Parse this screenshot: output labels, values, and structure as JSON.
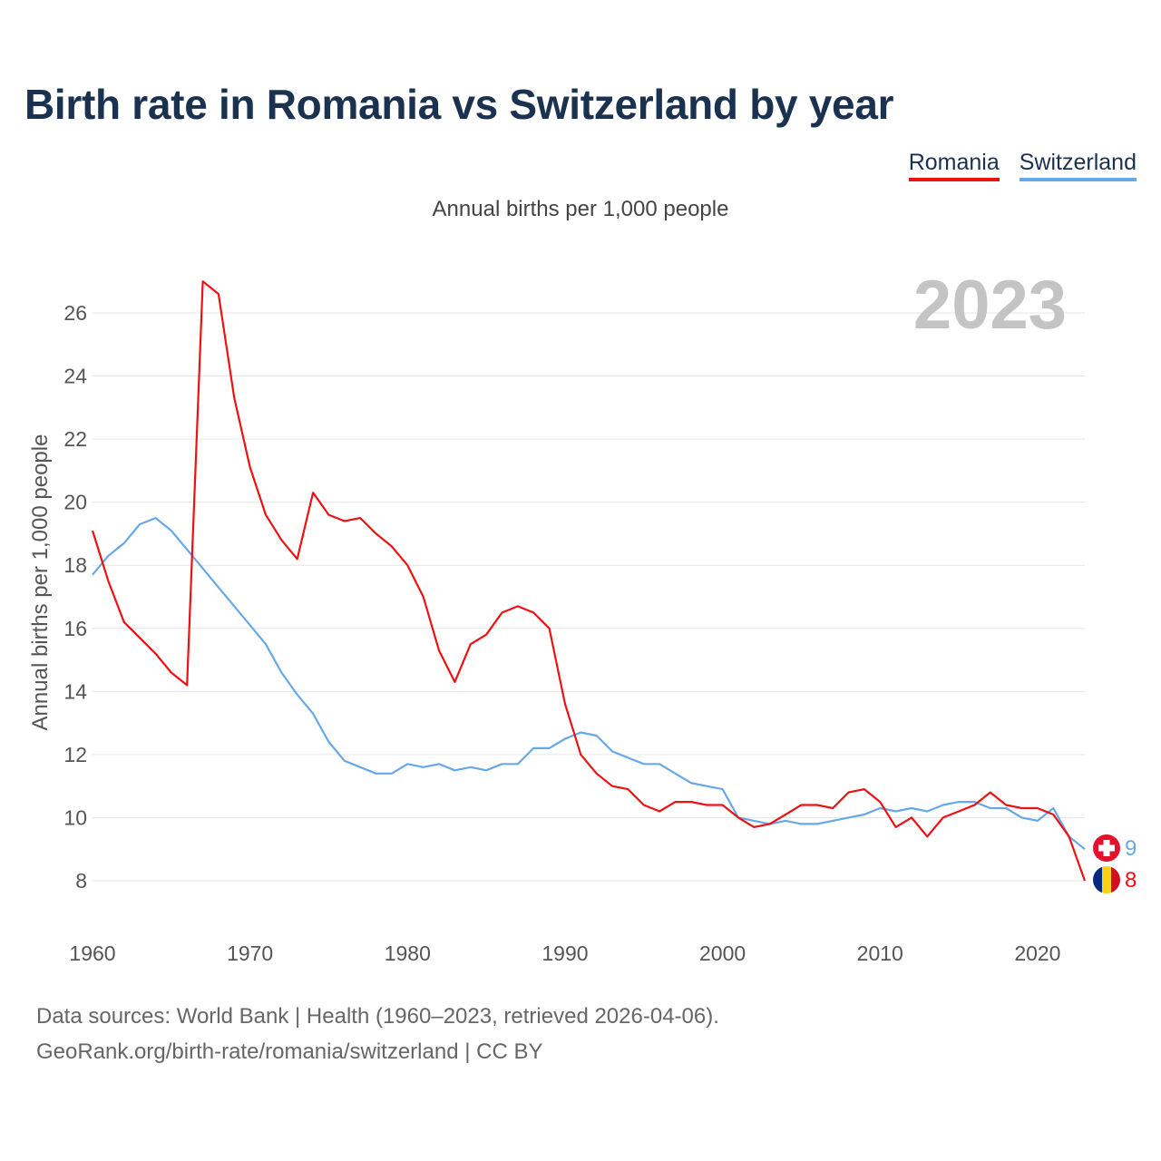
{
  "colors": {
    "romania": "#ee1111",
    "switzerland": "#66a8e8",
    "title": "#1a3150"
  },
  "chart_data": {
    "type": "line",
    "title": "Birth rate in Romania vs Switzerland by year",
    "subtitle": "Annual births per 1,000 people",
    "ylabel": "Annual births per 1,000 people",
    "xlabel": "",
    "year_label": "2023",
    "xlim": [
      1960,
      2023
    ],
    "ylim": [
      7,
      27.5
    ],
    "x_ticks": [
      "1960",
      "1970",
      "1980",
      "1990",
      "2000",
      "2010",
      "2020"
    ],
    "y_ticks": [
      "8",
      "10",
      "12",
      "14",
      "16",
      "18",
      "20",
      "22",
      "24",
      "26"
    ],
    "x": [
      1960,
      1961,
      1962,
      1963,
      1964,
      1965,
      1966,
      1967,
      1968,
      1969,
      1970,
      1971,
      1972,
      1973,
      1974,
      1975,
      1976,
      1977,
      1978,
      1979,
      1980,
      1981,
      1982,
      1983,
      1984,
      1985,
      1986,
      1987,
      1988,
      1989,
      1990,
      1991,
      1992,
      1993,
      1994,
      1995,
      1996,
      1997,
      1998,
      1999,
      2000,
      2001,
      2002,
      2003,
      2004,
      2005,
      2006,
      2007,
      2008,
      2009,
      2010,
      2011,
      2012,
      2013,
      2014,
      2015,
      2016,
      2017,
      2018,
      2019,
      2020,
      2021,
      2022,
      2023
    ],
    "series": [
      {
        "name": "Romania",
        "color": "#ee1111",
        "end_label": "8",
        "values": [
          19.1,
          17.5,
          16.2,
          15.7,
          15.2,
          14.6,
          14.2,
          27.0,
          26.6,
          23.3,
          21.1,
          19.6,
          18.8,
          18.2,
          20.3,
          19.6,
          19.4,
          19.5,
          19.0,
          18.6,
          18.0,
          17.0,
          15.3,
          14.3,
          15.5,
          15.8,
          16.5,
          16.7,
          16.5,
          16.0,
          13.6,
          12.0,
          11.4,
          11.0,
          10.9,
          10.4,
          10.2,
          10.5,
          10.5,
          10.4,
          10.4,
          10.0,
          9.7,
          9.8,
          10.1,
          10.4,
          10.4,
          10.3,
          10.8,
          10.9,
          10.5,
          9.7,
          10.0,
          9.4,
          10.0,
          10.2,
          10.4,
          10.8,
          10.4,
          10.3,
          10.3,
          10.1,
          9.4,
          8.0
        ]
      },
      {
        "name": "Switzerland",
        "color": "#66a8e8",
        "end_label": "9",
        "values": [
          17.7,
          18.3,
          18.7,
          19.3,
          19.5,
          19.1,
          18.5,
          17.9,
          17.3,
          16.7,
          16.1,
          15.5,
          14.6,
          13.9,
          13.3,
          12.4,
          11.8,
          11.6,
          11.4,
          11.4,
          11.7,
          11.6,
          11.7,
          11.5,
          11.6,
          11.5,
          11.7,
          11.7,
          12.2,
          12.2,
          12.5,
          12.7,
          12.6,
          12.1,
          11.9,
          11.7,
          11.7,
          11.4,
          11.1,
          11.0,
          10.9,
          10.0,
          9.9,
          9.8,
          9.9,
          9.8,
          9.8,
          9.9,
          10.0,
          10.1,
          10.3,
          10.2,
          10.3,
          10.2,
          10.4,
          10.5,
          10.5,
          10.3,
          10.3,
          10.0,
          9.9,
          10.3,
          9.4,
          9.0
        ]
      }
    ]
  },
  "legend": {
    "items": [
      "Romania",
      "Switzerland"
    ]
  },
  "footer": {
    "line1": "Data sources: World Bank | Health (1960–2023, retrieved 2026-04-06).",
    "line2": "GeoRank.org/birth-rate/romania/switzerland | CC BY"
  },
  "icons": {
    "switzerland_flag": "switzerland-flag-icon",
    "romania_flag": "romania-flag-icon"
  }
}
